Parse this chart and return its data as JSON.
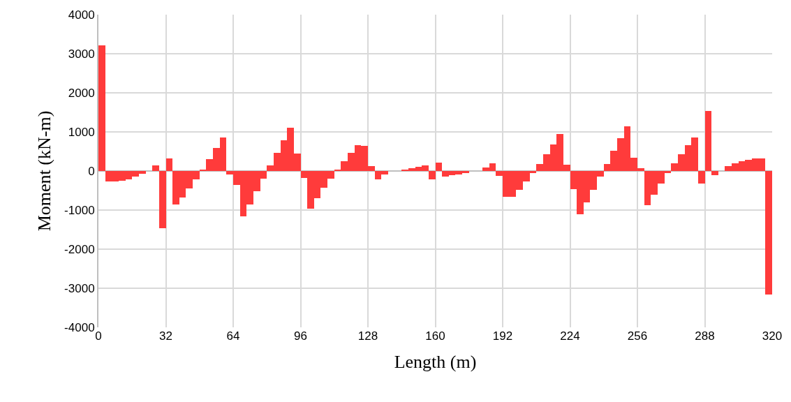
{
  "chart_data": {
    "type": "bar",
    "xlabel": "Length (m)",
    "ylabel": "Moment (kN-m)",
    "x": [
      1.6,
      4.8,
      8.0,
      11.2,
      14.4,
      17.6,
      20.8,
      24.0,
      27.2,
      30.4,
      33.6,
      36.8,
      40.0,
      43.2,
      46.4,
      49.6,
      52.8,
      56.0,
      59.2,
      62.4,
      65.6,
      68.8,
      72.0,
      75.2,
      78.4,
      81.6,
      84.8,
      88.0,
      91.2,
      94.4,
      97.6,
      100.8,
      104.0,
      107.2,
      110.4,
      113.6,
      116.8,
      120.0,
      123.2,
      126.4,
      129.6,
      132.8,
      136.0,
      139.2,
      142.4,
      145.6,
      148.8,
      152.0,
      155.2,
      158.4,
      161.6,
      164.8,
      168.0,
      171.2,
      174.4,
      177.6,
      180.8,
      184.0,
      187.2,
      190.4,
      193.6,
      196.8,
      200.0,
      203.2,
      206.4,
      209.6,
      212.8,
      216.0,
      219.2,
      222.4,
      225.6,
      228.8,
      232.0,
      235.2,
      238.4,
      241.6,
      244.8,
      248.0,
      251.2,
      254.4,
      257.6,
      260.8,
      264.0,
      267.2,
      270.4,
      273.6,
      276.8,
      280.0,
      283.2,
      286.4,
      289.6,
      292.8,
      296.0,
      299.2,
      302.4,
      305.6,
      308.8,
      312.0,
      315.2,
      318.4
    ],
    "values": [
      3220,
      -270,
      -270,
      -250,
      -210,
      -150,
      -65,
      0,
      140,
      -1460,
      315,
      -860,
      -670,
      -450,
      -210,
      40,
      310,
      585,
      865,
      -90,
      -360,
      -1160,
      -850,
      -525,
      -195,
      135,
      465,
      790,
      1100,
      445,
      -180,
      -960,
      -690,
      -435,
      -195,
      35,
      255,
      465,
      655,
      645,
      120,
      -210,
      -95,
      0,
      0,
      40,
      80,
      110,
      145,
      -220,
      210,
      -150,
      -115,
      -90,
      -60,
      0,
      0,
      90,
      190,
      -130,
      -655,
      -665,
      -475,
      -270,
      -50,
      180,
      425,
      680,
      940,
      160,
      -460,
      -1110,
      -800,
      -490,
      -150,
      180,
      510,
      835,
      1150,
      340,
      70,
      -875,
      -600,
      -330,
      -60,
      190,
      430,
      655,
      855,
      -330,
      1530,
      -100,
      0,
      120,
      195,
      250,
      290,
      315,
      320,
      -3165
    ],
    "color": "#ff3b3b",
    "xlim": [
      0,
      320
    ],
    "xticks": [
      0,
      32,
      64,
      96,
      128,
      160,
      192,
      224,
      256,
      288,
      320
    ],
    "ylim": [
      -4000,
      4000
    ],
    "yticks": [
      -4000,
      -3000,
      -2000,
      -1000,
      0,
      1000,
      2000,
      3000,
      4000
    ],
    "grid": true
  }
}
